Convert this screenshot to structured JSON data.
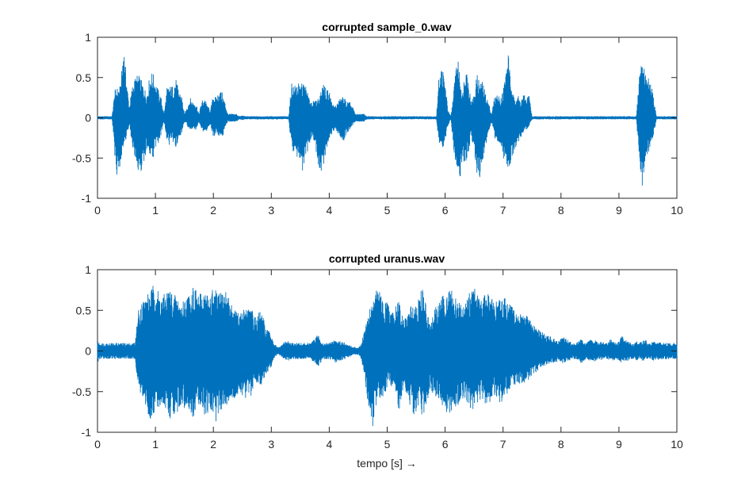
{
  "figure": {
    "background": "#ffffff",
    "xlabel": "tempo [s] →"
  },
  "chart_data": [
    {
      "type": "line",
      "title": "corrupted sample_0.wav",
      "xlabel": "",
      "ylabel": "",
      "xlim": [
        0,
        10
      ],
      "ylim": [
        -1,
        1
      ],
      "xticks": [
        0,
        1,
        2,
        3,
        4,
        5,
        6,
        7,
        8,
        9,
        10
      ],
      "yticks": [
        -1,
        -0.5,
        0,
        0.5,
        1
      ],
      "ytick_labels": [
        "-1",
        "-0.5",
        "0",
        "0.5",
        "1"
      ],
      "grid": false,
      "color": "#0072BD",
      "x_step": 0.05,
      "envelope": {
        "description": "amplitude envelope of the waveform, sampled every 0.05 s from 0 to 10 s",
        "upper": [
          0.02,
          0.02,
          0.02,
          0.02,
          0.02,
          0.02,
          0.35,
          0.38,
          0.4,
          0.95,
          0.5,
          0.15,
          0.4,
          0.5,
          0.55,
          0.48,
          0.4,
          0.3,
          0.52,
          0.58,
          0.45,
          0.35,
          0.25,
          0.05,
          0.38,
          0.4,
          0.4,
          0.5,
          0.35,
          0.3,
          0.05,
          0.15,
          0.25,
          0.2,
          0.2,
          0.05,
          0.22,
          0.25,
          0.15,
          0.1,
          0.3,
          0.25,
          0.35,
          0.32,
          0.2,
          0.05,
          0.05,
          0.05,
          0.05,
          0.02,
          0.03,
          0.02,
          0.02,
          0.02,
          0.02,
          0.02,
          0.02,
          0.02,
          0.02,
          0.02,
          0.02,
          0.02,
          0.02,
          0.02,
          0.02,
          0.02,
          0.02,
          0.45,
          0.4,
          0.45,
          0.4,
          0.45,
          0.4,
          0.25,
          0.22,
          0.2,
          0.25,
          0.3,
          0.45,
          0.35,
          0.35,
          0.18,
          0.15,
          0.2,
          0.25,
          0.28,
          0.2,
          0.2,
          0.15,
          0.05,
          0.05,
          0.05,
          0.05,
          0.02,
          0.02,
          0.02,
          0.02,
          0.02,
          0.02,
          0.02,
          0.02,
          0.02,
          0.02,
          0.02,
          0.02,
          0.02,
          0.02,
          0.02,
          0.02,
          0.02,
          0.02,
          0.02,
          0.02,
          0.02,
          0.02,
          0.02,
          0.02,
          0.02,
          0.6,
          0.65,
          0.45,
          0.1,
          0.02,
          0.35,
          0.8,
          0.6,
          0.3,
          0.7,
          0.5,
          0.2,
          0.3,
          0.55,
          0.45,
          0.45,
          0.3,
          0.2,
          0.05,
          0.25,
          0.3,
          0.25,
          0.35,
          0.6,
          0.85,
          0.3,
          0.28,
          0.3,
          0.22,
          0.3,
          0.25,
          0.3,
          0.02,
          0.02,
          0.02,
          0.02,
          0.02,
          0.02,
          0.02,
          0.02,
          0.02,
          0.02,
          0.02,
          0.02,
          0.02,
          0.02,
          0.02,
          0.02,
          0.02,
          0.02,
          0.02,
          0.02,
          0.02,
          0.02,
          0.02,
          0.02,
          0.02,
          0.02,
          0.02,
          0.02,
          0.02,
          0.02,
          0.02,
          0.02,
          0.02,
          0.02,
          0.02,
          0.02,
          0.02,
          0.5,
          0.75,
          0.55,
          0.5,
          0.45,
          0.25,
          0.02,
          0.02
        ],
        "lower": [
          -0.02,
          -0.02,
          -0.02,
          -0.02,
          -0.02,
          -0.02,
          -0.5,
          -0.8,
          -0.55,
          -0.35,
          -0.25,
          -0.1,
          -0.35,
          -0.5,
          -0.65,
          -0.7,
          -0.55,
          -0.4,
          -0.45,
          -0.55,
          -0.4,
          -0.35,
          -0.2,
          -0.05,
          -0.3,
          -0.35,
          -0.3,
          -0.4,
          -0.25,
          -0.2,
          -0.05,
          -0.1,
          -0.2,
          -0.15,
          -0.15,
          -0.05,
          -0.15,
          -0.2,
          -0.15,
          -0.1,
          -0.25,
          -0.2,
          -0.3,
          -0.25,
          -0.15,
          -0.05,
          -0.05,
          -0.05,
          -0.05,
          -0.02,
          -0.03,
          -0.02,
          -0.02,
          -0.02,
          -0.02,
          -0.02,
          -0.02,
          -0.02,
          -0.02,
          -0.02,
          -0.02,
          -0.02,
          -0.02,
          -0.02,
          -0.02,
          -0.02,
          -0.02,
          -0.4,
          -0.45,
          -0.5,
          -0.6,
          -0.7,
          -0.55,
          -0.35,
          -0.25,
          -0.3,
          -0.55,
          -0.7,
          -0.6,
          -0.4,
          -0.25,
          -0.2,
          -0.15,
          -0.2,
          -0.25,
          -0.3,
          -0.2,
          -0.15,
          -0.1,
          -0.05,
          -0.05,
          -0.05,
          -0.05,
          -0.02,
          -0.02,
          -0.02,
          -0.02,
          -0.02,
          -0.02,
          -0.02,
          -0.02,
          -0.02,
          -0.02,
          -0.02,
          -0.02,
          -0.02,
          -0.02,
          -0.02,
          -0.02,
          -0.02,
          -0.02,
          -0.02,
          -0.02,
          -0.02,
          -0.02,
          -0.02,
          -0.02,
          -0.02,
          -0.35,
          -0.4,
          -0.3,
          -0.1,
          -0.02,
          -0.45,
          -0.65,
          -0.85,
          -0.5,
          -0.6,
          -0.5,
          -0.2,
          -0.45,
          -0.7,
          -0.75,
          -0.6,
          -0.4,
          -0.2,
          -0.05,
          -0.25,
          -0.3,
          -0.35,
          -0.5,
          -0.55,
          -0.65,
          -0.5,
          -0.4,
          -0.35,
          -0.25,
          -0.2,
          -0.15,
          -0.1,
          -0.02,
          -0.02,
          -0.02,
          -0.02,
          -0.02,
          -0.02,
          -0.02,
          -0.02,
          -0.02,
          -0.02,
          -0.02,
          -0.02,
          -0.02,
          -0.02,
          -0.02,
          -0.02,
          -0.02,
          -0.02,
          -0.02,
          -0.02,
          -0.02,
          -0.02,
          -0.02,
          -0.02,
          -0.02,
          -0.02,
          -0.02,
          -0.02,
          -0.02,
          -0.02,
          -0.02,
          -0.02,
          -0.02,
          -0.02,
          -0.02,
          -0.02,
          -0.02,
          -0.5,
          -0.88,
          -0.55,
          -0.45,
          -0.35,
          -0.2,
          -0.02,
          -0.02
        ]
      }
    },
    {
      "type": "line",
      "title": "corrupted uranus.wav",
      "xlabel": "tempo [s] →",
      "ylabel": "",
      "xlim": [
        0,
        10
      ],
      "ylim": [
        -1,
        1
      ],
      "xticks": [
        0,
        1,
        2,
        3,
        4,
        5,
        6,
        7,
        8,
        9,
        10
      ],
      "yticks": [
        -1,
        -0.5,
        0,
        0.5,
        1
      ],
      "ytick_labels": [
        "-1",
        "-0.5",
        "0",
        "0.5",
        "1"
      ],
      "grid": false,
      "color": "#0072BD",
      "x_step": 0.05,
      "envelope": {
        "description": "amplitude envelope of the waveform, sampled every 0.05 s from 0 to 10 s",
        "upper": [
          0.12,
          0.1,
          0.1,
          0.1,
          0.1,
          0.1,
          0.1,
          0.1,
          0.1,
          0.1,
          0.1,
          0.1,
          0.1,
          0.1,
          0.5,
          0.6,
          0.65,
          0.7,
          0.75,
          0.8,
          0.85,
          0.75,
          0.7,
          0.7,
          0.75,
          0.8,
          0.7,
          0.7,
          0.65,
          0.6,
          0.65,
          0.7,
          0.72,
          0.85,
          0.75,
          0.7,
          0.72,
          0.75,
          0.72,
          0.7,
          0.8,
          0.75,
          0.7,
          0.75,
          0.78,
          0.7,
          0.6,
          0.55,
          0.5,
          0.45,
          0.5,
          0.55,
          0.6,
          0.55,
          0.45,
          0.4,
          0.5,
          0.45,
          0.3,
          0.25,
          0.2,
          0.1,
          0.05,
          0.05,
          0.1,
          0.12,
          0.12,
          0.1,
          0.1,
          0.1,
          0.1,
          0.1,
          0.1,
          0.1,
          0.12,
          0.15,
          0.2,
          0.15,
          0.1,
          0.1,
          0.1,
          0.12,
          0.15,
          0.12,
          0.12,
          0.12,
          0.08,
          0.08,
          0.05,
          0.05,
          0.05,
          0.08,
          0.25,
          0.4,
          0.55,
          0.65,
          0.75,
          0.85,
          0.7,
          0.55,
          0.65,
          0.45,
          0.5,
          0.55,
          0.65,
          0.45,
          0.4,
          0.45,
          0.55,
          0.62,
          0.6,
          0.65,
          0.8,
          0.65,
          0.45,
          0.3,
          0.5,
          0.55,
          0.6,
          0.68,
          0.72,
          0.75,
          0.78,
          0.7,
          0.65,
          0.6,
          0.55,
          0.6,
          0.7,
          0.75,
          0.8,
          0.72,
          0.65,
          0.68,
          0.75,
          0.7,
          0.65,
          0.6,
          0.62,
          0.68,
          0.7,
          0.65,
          0.6,
          0.55,
          0.5,
          0.45,
          0.45,
          0.48,
          0.45,
          0.4,
          0.35,
          0.3,
          0.3,
          0.25,
          0.22,
          0.2,
          0.2,
          0.15,
          0.15,
          0.12,
          0.15,
          0.18,
          0.15,
          0.12,
          0.1,
          0.1,
          0.12,
          0.15,
          0.12,
          0.1,
          0.15,
          0.12,
          0.15,
          0.1,
          0.12,
          0.1,
          0.1,
          0.15,
          0.12,
          0.1,
          0.12,
          0.2,
          0.15,
          0.12,
          0.1,
          0.1,
          0.12,
          0.1,
          0.12,
          0.15,
          0.1,
          0.1,
          0.12,
          0.1,
          0.12,
          0.1
        ],
        "lower": [
          -0.15,
          -0.1,
          -0.1,
          -0.1,
          -0.1,
          -0.1,
          -0.1,
          -0.1,
          -0.1,
          -0.1,
          -0.1,
          -0.1,
          -0.1,
          -0.1,
          -0.45,
          -0.55,
          -0.6,
          -0.75,
          -0.85,
          -0.8,
          -0.75,
          -0.7,
          -0.65,
          -0.65,
          -0.75,
          -0.85,
          -0.8,
          -0.75,
          -0.75,
          -0.7,
          -0.7,
          -0.75,
          -0.8,
          -0.82,
          -0.75,
          -0.7,
          -0.75,
          -0.8,
          -0.78,
          -0.72,
          -0.85,
          -0.9,
          -0.8,
          -0.75,
          -0.7,
          -0.65,
          -0.6,
          -0.6,
          -0.55,
          -0.5,
          -0.55,
          -0.6,
          -0.5,
          -0.55,
          -0.45,
          -0.4,
          -0.45,
          -0.4,
          -0.3,
          -0.25,
          -0.2,
          -0.1,
          -0.05,
          -0.05,
          -0.1,
          -0.12,
          -0.12,
          -0.1,
          -0.1,
          -0.1,
          -0.1,
          -0.1,
          -0.1,
          -0.1,
          -0.12,
          -0.15,
          -0.2,
          -0.15,
          -0.1,
          -0.1,
          -0.1,
          -0.12,
          -0.15,
          -0.12,
          -0.12,
          -0.12,
          -0.08,
          -0.08,
          -0.05,
          -0.05,
          -0.05,
          -0.1,
          -0.3,
          -0.55,
          -0.8,
          -0.95,
          -0.7,
          -0.55,
          -0.6,
          -0.55,
          -0.45,
          -0.4,
          -0.5,
          -0.55,
          -0.75,
          -0.6,
          -0.5,
          -0.55,
          -0.7,
          -0.8,
          -0.75,
          -0.7,
          -0.85,
          -0.75,
          -0.6,
          -0.45,
          -0.55,
          -0.6,
          -0.65,
          -0.7,
          -0.75,
          -0.8,
          -0.75,
          -0.72,
          -0.7,
          -0.65,
          -0.6,
          -0.65,
          -0.7,
          -0.75,
          -0.72,
          -0.68,
          -0.65,
          -0.62,
          -0.7,
          -0.65,
          -0.6,
          -0.55,
          -0.6,
          -0.65,
          -0.6,
          -0.55,
          -0.5,
          -0.45,
          -0.42,
          -0.4,
          -0.4,
          -0.45,
          -0.4,
          -0.35,
          -0.3,
          -0.28,
          -0.25,
          -0.22,
          -0.2,
          -0.18,
          -0.18,
          -0.15,
          -0.15,
          -0.12,
          -0.15,
          -0.15,
          -0.12,
          -0.12,
          -0.1,
          -0.1,
          -0.12,
          -0.15,
          -0.12,
          -0.1,
          -0.12,
          -0.12,
          -0.15,
          -0.1,
          -0.12,
          -0.1,
          -0.1,
          -0.12,
          -0.12,
          -0.1,
          -0.12,
          -0.15,
          -0.12,
          -0.12,
          -0.1,
          -0.1,
          -0.12,
          -0.1,
          -0.12,
          -0.12,
          -0.1,
          -0.1,
          -0.12,
          -0.1,
          -0.12,
          -0.1
        ]
      }
    }
  ]
}
